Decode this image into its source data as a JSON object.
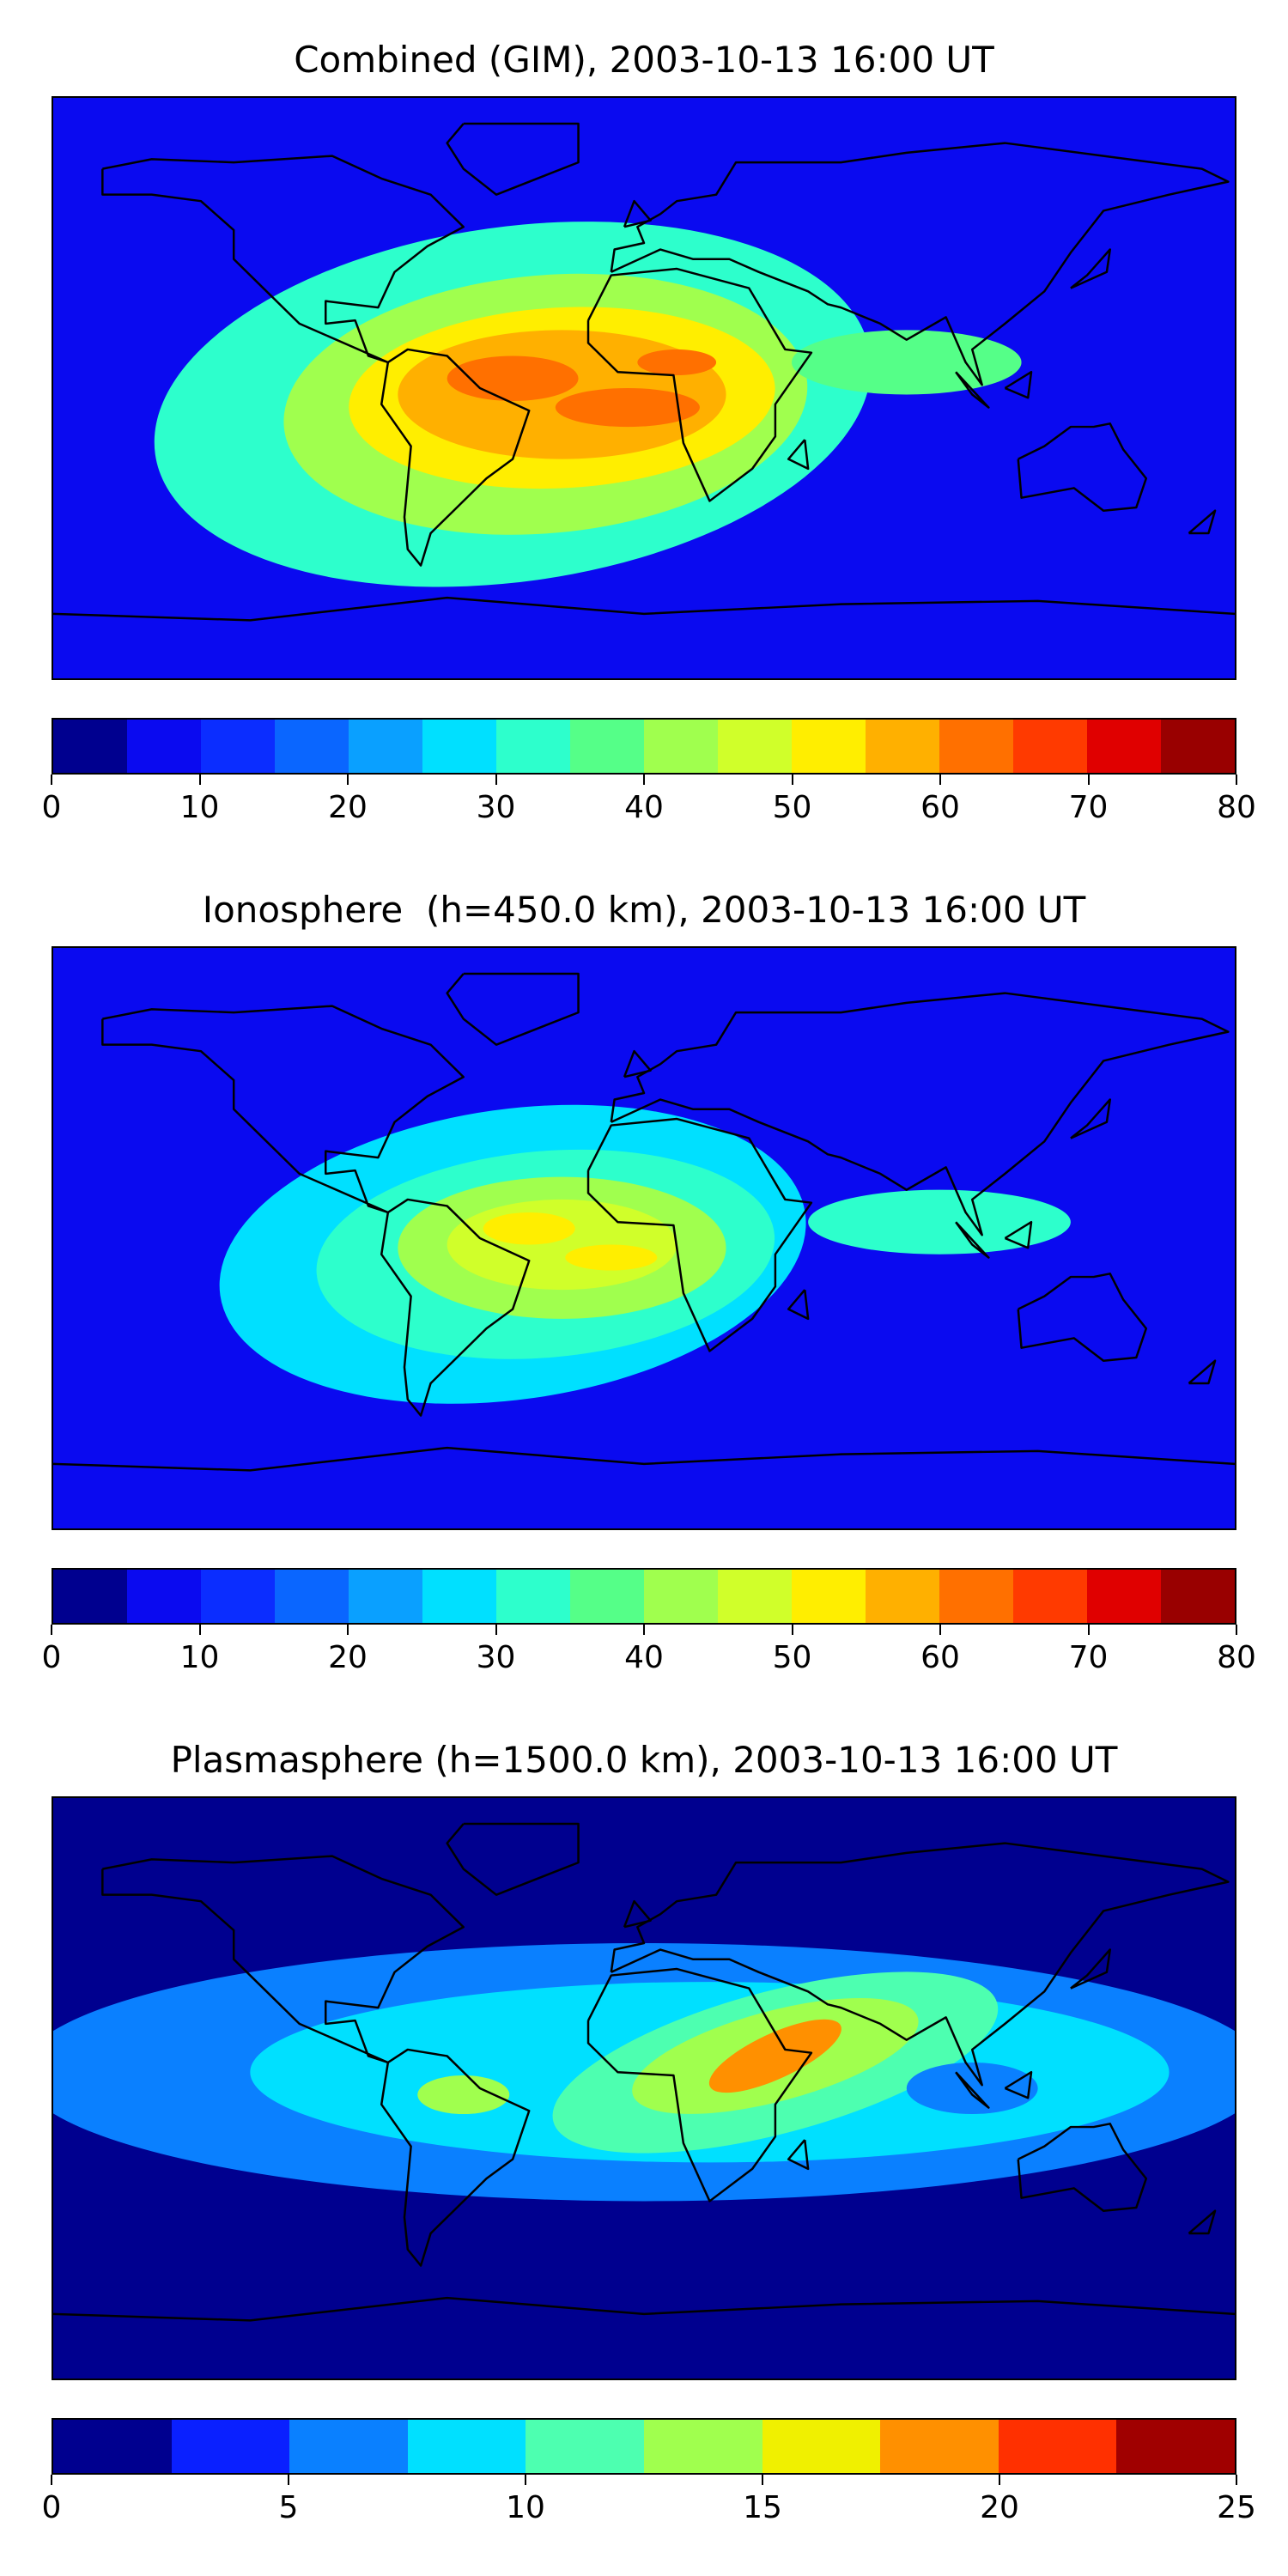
{
  "chart_data": [
    {
      "type": "heatmap",
      "title": "Combined (GIM), 2003-10-13 16:00 UT",
      "colorbar": {
        "min": 0,
        "max": 80,
        "step": 5,
        "ticks": [
          0,
          10,
          20,
          30,
          40,
          50,
          60,
          70,
          80
        ]
      },
      "features": [
        {
          "lon": -40,
          "lat": -5,
          "rx": 110,
          "ry": 55,
          "value": 30,
          "rot": -8
        },
        {
          "lon": -30,
          "lat": -5,
          "rx": 80,
          "ry": 40,
          "value": 40,
          "rot": -5
        },
        {
          "lon": -25,
          "lat": -3,
          "rx": 65,
          "ry": 28,
          "value": 50,
          "rot": -3
        },
        {
          "lon": -25,
          "lat": -2,
          "rx": 50,
          "ry": 20,
          "value": 58,
          "rot": 0
        },
        {
          "lon": -40,
          "lat": 3,
          "rx": 20,
          "ry": 7,
          "value": 62,
          "rot": 0
        },
        {
          "lon": -5,
          "lat": -6,
          "rx": 22,
          "ry": 6,
          "value": 62,
          "rot": 0
        },
        {
          "lon": 10,
          "lat": 8,
          "rx": 12,
          "ry": 4,
          "value": 62,
          "rot": 0
        },
        {
          "lon": 80,
          "lat": 8,
          "rx": 35,
          "ry": 10,
          "value": 35,
          "rot": 0
        }
      ]
    },
    {
      "type": "heatmap",
      "title": "Ionosphere  (h=450.0 km), 2003-10-13 16:00 UT",
      "colorbar": {
        "min": 0,
        "max": 80,
        "step": 5,
        "ticks": [
          0,
          10,
          20,
          30,
          40,
          50,
          60,
          70,
          80
        ]
      },
      "features": [
        {
          "lon": -40,
          "lat": -5,
          "rx": 90,
          "ry": 45,
          "value": 25,
          "rot": -8
        },
        {
          "lon": -30,
          "lat": -5,
          "rx": 70,
          "ry": 32,
          "value": 32,
          "rot": -5
        },
        {
          "lon": -25,
          "lat": -3,
          "rx": 50,
          "ry": 22,
          "value": 40,
          "rot": 0
        },
        {
          "lon": -25,
          "lat": -2,
          "rx": 35,
          "ry": 14,
          "value": 48,
          "rot": 0
        },
        {
          "lon": -35,
          "lat": 3,
          "rx": 14,
          "ry": 5,
          "value": 52,
          "rot": 0
        },
        {
          "lon": -10,
          "lat": -6,
          "rx": 14,
          "ry": 4,
          "value": 52,
          "rot": 0
        },
        {
          "lon": 90,
          "lat": 5,
          "rx": 40,
          "ry": 10,
          "value": 30,
          "rot": 0
        }
      ]
    },
    {
      "type": "heatmap",
      "title": "Plasmasphere (h=1500.0 km), 2003-10-13 16:00 UT",
      "colorbar": {
        "min": 0,
        "max": 25,
        "step": 2.5,
        "ticks": [
          0,
          5,
          10,
          15,
          20,
          25
        ]
      },
      "features": [
        {
          "lon": 0,
          "lat": 5,
          "rx": 190,
          "ry": 40,
          "value": 5,
          "rot": 0
        },
        {
          "lon": 20,
          "lat": 5,
          "rx": 140,
          "ry": 28,
          "value": 7.5,
          "rot": 0
        },
        {
          "lon": 40,
          "lat": 8,
          "rx": 70,
          "ry": 22,
          "value": 11,
          "rot": -15
        },
        {
          "lon": 40,
          "lat": 10,
          "rx": 45,
          "ry": 14,
          "value": 14,
          "rot": -15
        },
        {
          "lon": 40,
          "lat": 10,
          "rx": 22,
          "ry": 7,
          "value": 19,
          "rot": -25
        },
        {
          "lon": -55,
          "lat": -2,
          "rx": 14,
          "ry": 6,
          "value": 14,
          "rot": 0
        },
        {
          "lon": 100,
          "lat": 0,
          "rx": 20,
          "ry": 8,
          "value": 5,
          "rot": 0
        }
      ]
    }
  ]
}
